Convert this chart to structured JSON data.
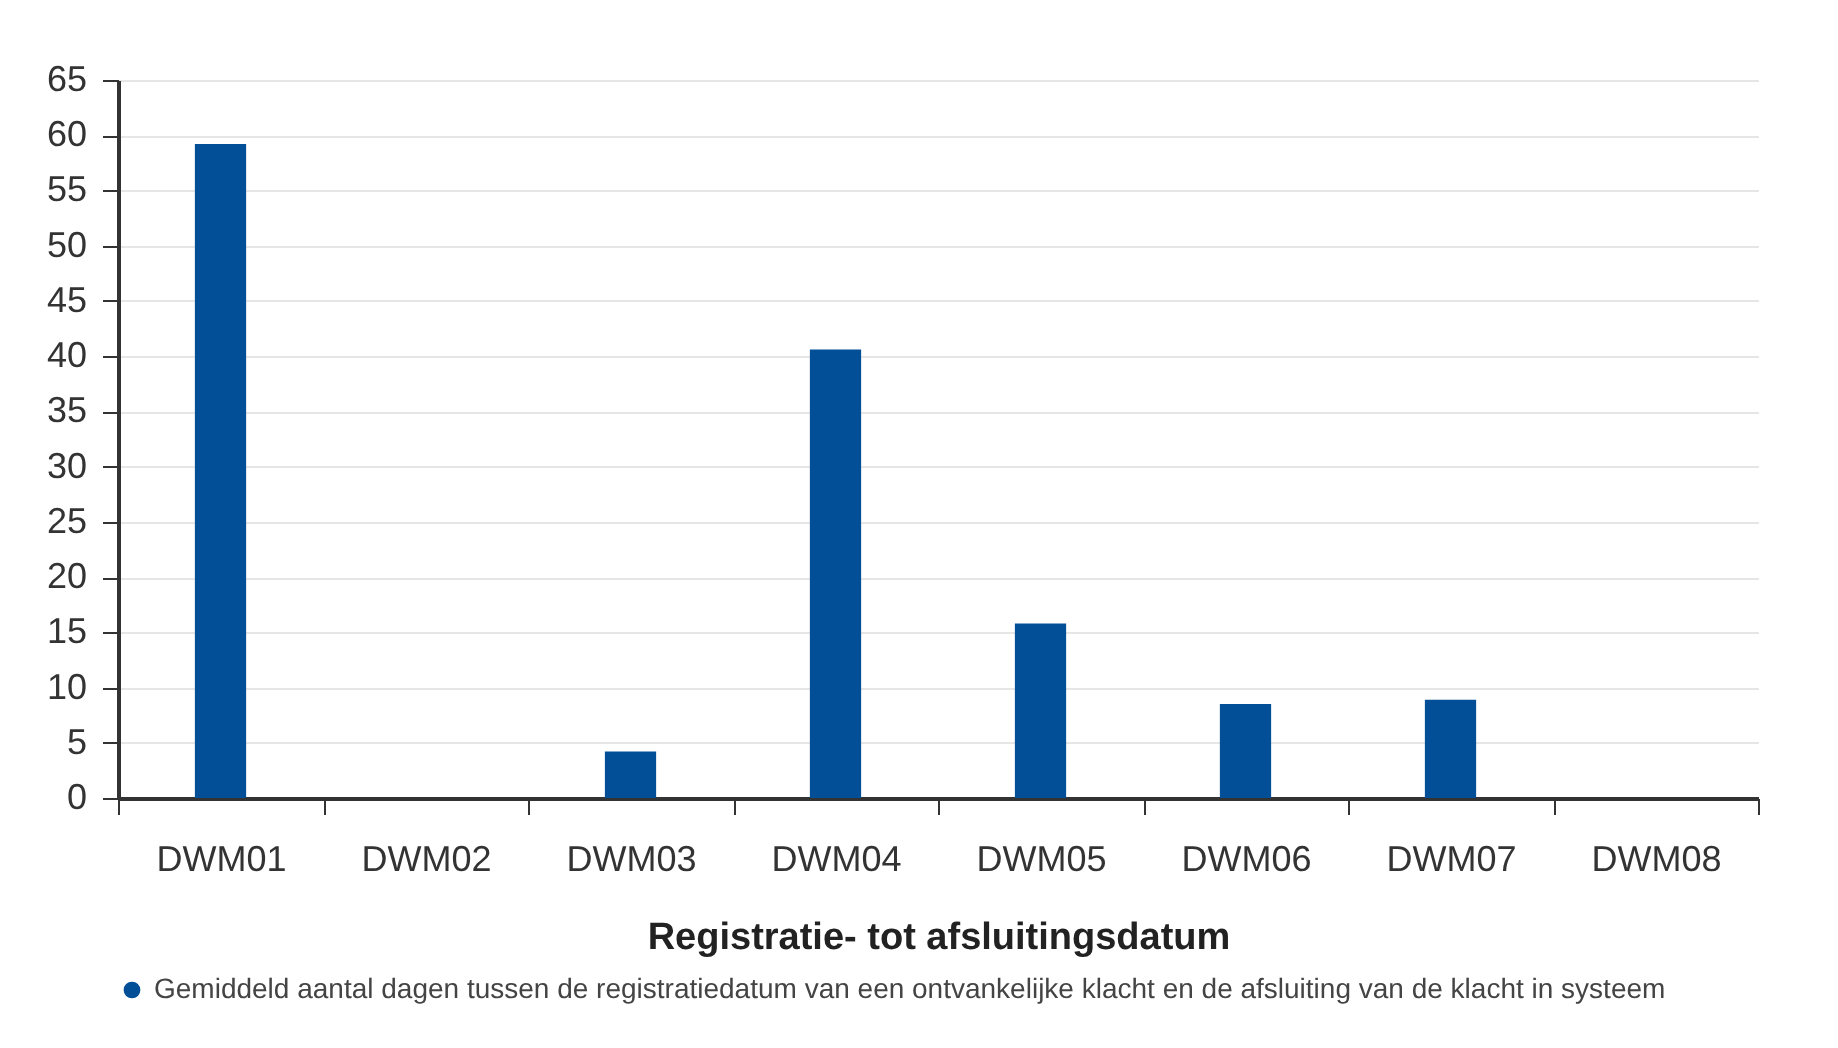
{
  "chart_data": {
    "type": "bar",
    "xlabel": "Registratie- tot afsluitingsdatum",
    "categories": [
      "DWM01",
      "DWM02",
      "DWM03",
      "DWM04",
      "DWM05",
      "DWM06",
      "DWM07",
      "DWM08"
    ],
    "series": [
      {
        "name": "Gemiddeld aantal dagen tussen de registratiedatum van een ontvankelijke klacht en de afsluiting van de klacht in systeem",
        "color": "#024f98",
        "values": [
          59.2,
          0,
          4.2,
          40.6,
          15.8,
          8.5,
          8.9,
          0
        ]
      }
    ],
    "ylim": [
      0,
      65
    ],
    "yticks": [
      0,
      5,
      10,
      15,
      20,
      25,
      30,
      35,
      40,
      45,
      50,
      55,
      60,
      65
    ],
    "grid": "y",
    "legend": "bottom"
  }
}
